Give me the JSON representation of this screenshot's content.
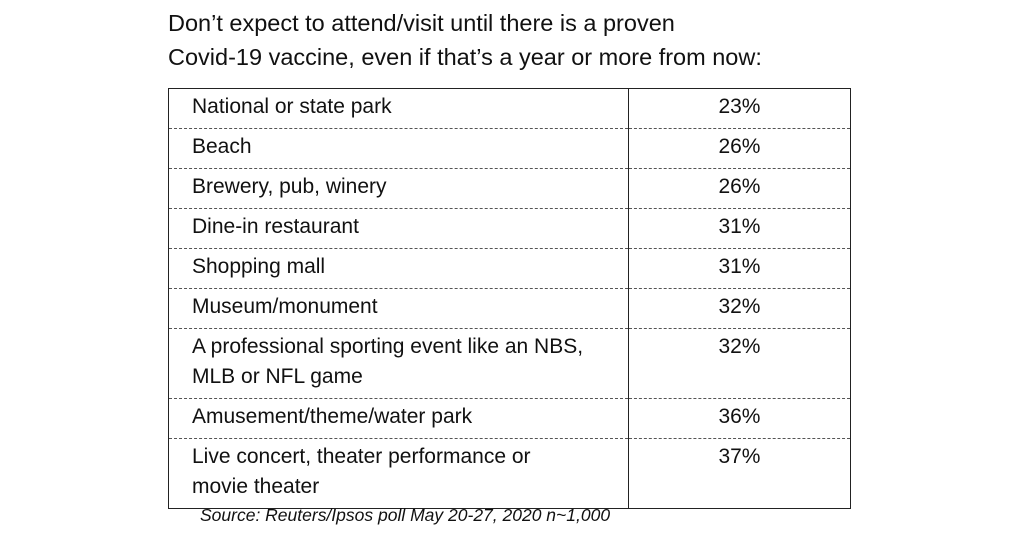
{
  "title_lines": [
    "Don’t expect to attend/visit until there is a proven",
    "Covid-19 vaccine, even if that’s a year or more from now:"
  ],
  "source": "Source: Reuters/Ipsos poll May 20-27, 2020 n~1,000",
  "chart_data": {
    "type": "table",
    "title": "Don’t expect to attend/visit until there is a proven Covid-19 vaccine, even if that’s a year or more from now:",
    "rows": [
      {
        "label": "National or state park",
        "value": "23%"
      },
      {
        "label": "Beach",
        "value": "26%"
      },
      {
        "label": "Brewery, pub, winery",
        "value": "26%"
      },
      {
        "label": "Dine-in restaurant",
        "value": "31%"
      },
      {
        "label": "Shopping mall",
        "value": "31%"
      },
      {
        "label": "Museum/monument",
        "value": "32%"
      },
      {
        "label": "A professional sporting event like an NBS, MLB or NFL game",
        "lines": [
          "A professional sporting event like an NBS,",
          "MLB or NFL game"
        ],
        "value": "32%"
      },
      {
        "label": "Amusement/theme/water park",
        "value": "36%"
      },
      {
        "label": "Live concert, theater performance or movie theater",
        "lines": [
          "Live concert, theater performance or",
          "movie theater"
        ],
        "value": "37%"
      }
    ]
  }
}
